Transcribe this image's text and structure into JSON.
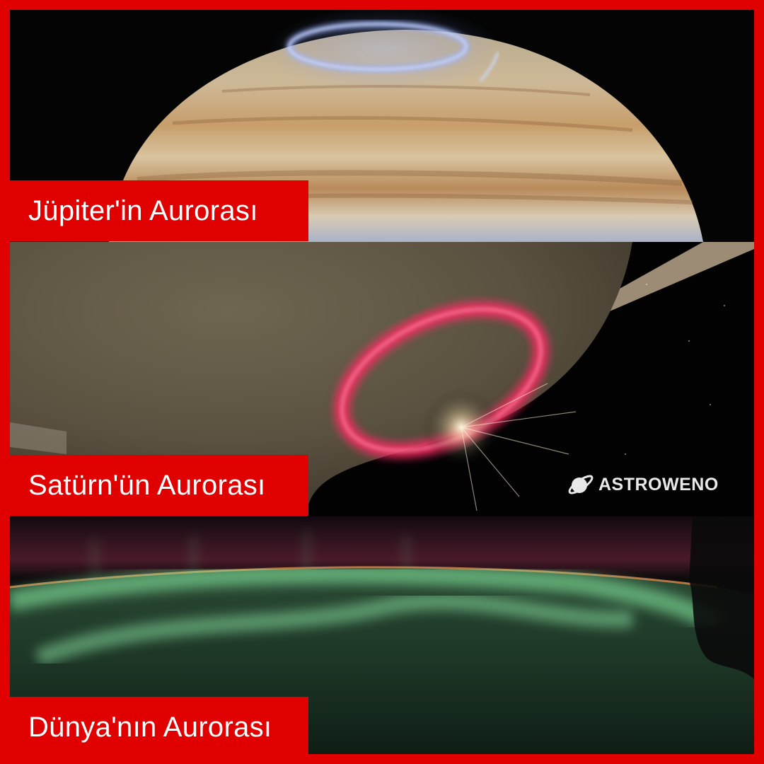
{
  "panels": [
    {
      "label": "Jüpiter'in Aurorası",
      "aurora_color": "#7fa2ff"
    },
    {
      "label": "Satürn'ün Aurorası",
      "aurora_color": "#ff3b6e"
    },
    {
      "label": "Dünya'nın Aurorası",
      "aurora_color": "#8cf5a8"
    }
  ],
  "brand": {
    "name": "ASTROWENO",
    "icon": "planet-ring-icon"
  },
  "colors": {
    "frame": "#e00000",
    "label_text": "#ffffff"
  }
}
